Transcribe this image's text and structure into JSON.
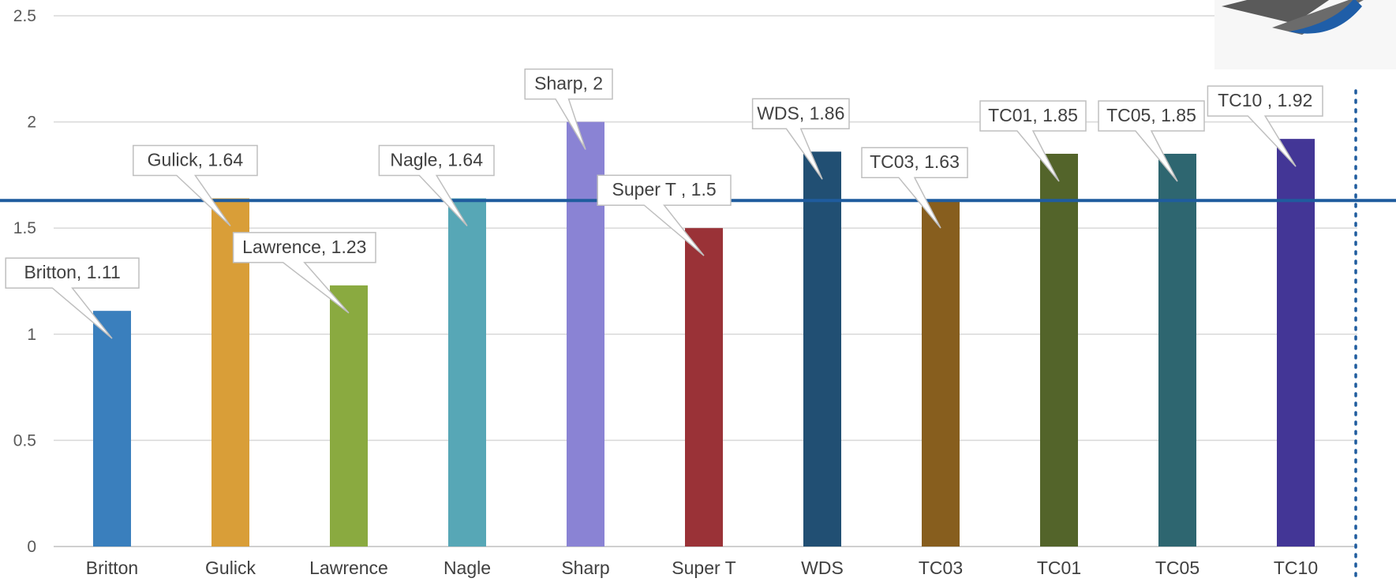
{
  "chart_data": {
    "type": "bar",
    "title": "",
    "xlabel": "",
    "ylabel": "",
    "ylim": [
      0,
      2.5
    ],
    "yticks": [
      0,
      0.5,
      1,
      1.5,
      2,
      2.5
    ],
    "grid": true,
    "categories": [
      "Britton",
      "Gulick",
      "Lawrence",
      "Nagle",
      "Sharp",
      "Super T",
      "WDS",
      "TC03",
      "TC01",
      "TC05",
      "TC10"
    ],
    "values": [
      1.11,
      1.64,
      1.23,
      1.64,
      2,
      1.5,
      1.86,
      1.63,
      1.85,
      1.85,
      1.92
    ],
    "colors": [
      "#3a7fbd",
      "#d99e38",
      "#8aaa40",
      "#57a7b6",
      "#8a83d4",
      "#9a3237",
      "#214f73",
      "#875e1e",
      "#53642a",
      "#2e6670",
      "#433696"
    ],
    "data_labels": [
      "Britton, 1.11",
      "Gulick, 1.64",
      "Lawrence, 1.23",
      "Nagle, 1.64",
      "Sharp, 2",
      "Super T , 1.5",
      "WDS, 1.86",
      "TC03, 1.63",
      "TC01, 1.85",
      "TC05, 1.85",
      "TC10 , 1.92"
    ],
    "reference_line": {
      "value": 1.63,
      "color": "#1f5c9e"
    },
    "divider_color": "#1f5c9e"
  }
}
